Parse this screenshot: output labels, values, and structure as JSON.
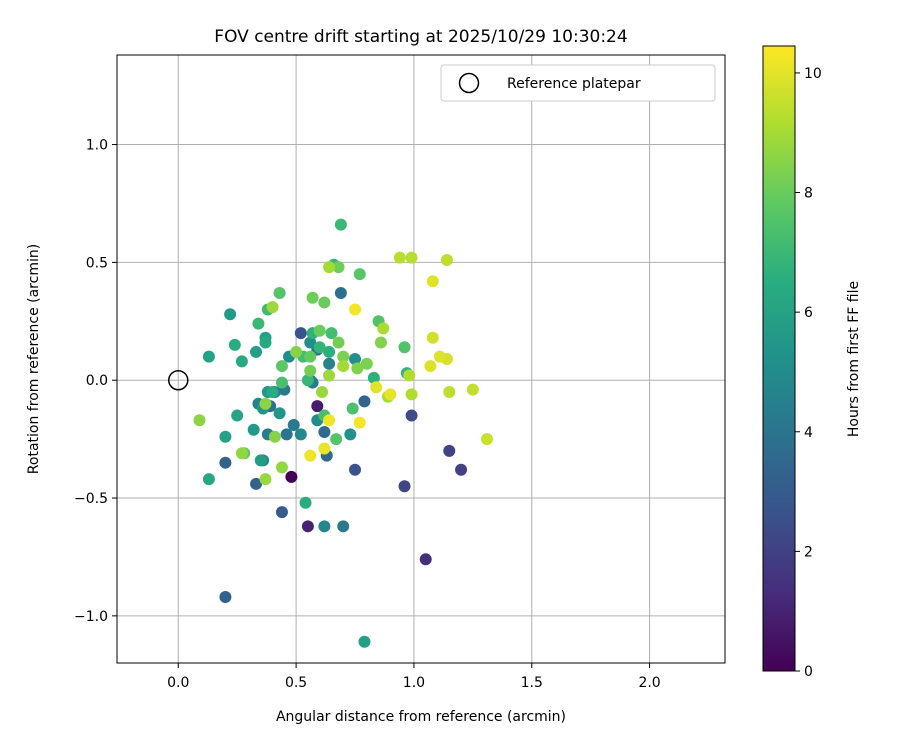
{
  "chart_data": {
    "type": "scatter",
    "title": "FOV centre drift starting at 2025/10/29 10:30:24",
    "xlabel": "Angular distance from reference (arcmin)",
    "ylabel": "Rotation from reference (arcmin)",
    "xlim": [
      -0.26,
      2.32
    ],
    "ylim": [
      -1.2,
      1.38
    ],
    "x_ticks": [
      0.0,
      0.5,
      1.0,
      1.5,
      2.0
    ],
    "x_tick_labels": [
      "0.0",
      "0.5",
      "1.0",
      "1.5",
      "2.0"
    ],
    "y_ticks": [
      -1.0,
      -0.5,
      0.0,
      0.5,
      1.0
    ],
    "y_tick_labels": [
      "−1.0",
      "−0.5",
      "0.0",
      "0.5",
      "1.0"
    ],
    "grid": true,
    "legend": {
      "position": "top-right",
      "entries": [
        "Reference platepar"
      ]
    },
    "reference_point": {
      "x": 0.0,
      "y": 0.0,
      "label": "Reference platepar"
    },
    "colorbar": {
      "label": "Hours from first FF file",
      "colormap": "viridis",
      "range": [
        0,
        10.45
      ],
      "ticks": [
        0,
        2,
        4,
        6,
        8,
        10
      ],
      "tick_labels": [
        "0",
        "2",
        "4",
        "6",
        "8",
        "10"
      ]
    },
    "points": [
      {
        "x": 0.48,
        "y": -0.41,
        "c": 0.0
      },
      {
        "x": 0.55,
        "y": -0.62,
        "c": 1.0
      },
      {
        "x": 0.59,
        "y": -0.11,
        "c": 0.8
      },
      {
        "x": 1.05,
        "y": -0.76,
        "c": 1.4
      },
      {
        "x": 0.96,
        "y": -0.45,
        "c": 2.2
      },
      {
        "x": 1.2,
        "y": -0.38,
        "c": 2.0
      },
      {
        "x": 1.15,
        "y": -0.3,
        "c": 2.1
      },
      {
        "x": 0.99,
        "y": -0.15,
        "c": 2.4
      },
      {
        "x": 0.75,
        "y": -0.38,
        "c": 2.6
      },
      {
        "x": 0.52,
        "y": 0.2,
        "c": 2.7
      },
      {
        "x": 0.44,
        "y": -0.56,
        "c": 3.0
      },
      {
        "x": 0.2,
        "y": -0.92,
        "c": 3.2
      },
      {
        "x": 0.2,
        "y": -0.35,
        "c": 3.3
      },
      {
        "x": 0.33,
        "y": -0.44,
        "c": 3.3
      },
      {
        "x": 0.79,
        "y": -0.09,
        "c": 3.4
      },
      {
        "x": 0.63,
        "y": -0.32,
        "c": 3.5
      },
      {
        "x": 0.62,
        "y": -0.22,
        "c": 3.6
      },
      {
        "x": 0.69,
        "y": 0.37,
        "c": 3.8
      },
      {
        "x": 0.39,
        "y": -0.11,
        "c": 3.9
      },
      {
        "x": 0.59,
        "y": 0.13,
        "c": 4.1
      },
      {
        "x": 0.49,
        "y": -0.19,
        "c": 4.2
      },
      {
        "x": 0.46,
        "y": -0.23,
        "c": 4.0
      },
      {
        "x": 0.38,
        "y": -0.23,
        "c": 4.3
      },
      {
        "x": 0.57,
        "y": -0.01,
        "c": 4.4
      },
      {
        "x": 0.41,
        "y": -0.05,
        "c": 4.5
      },
      {
        "x": 0.34,
        "y": -0.1,
        "c": 4.6
      },
      {
        "x": 0.36,
        "y": -0.34,
        "c": 4.7
      },
      {
        "x": 0.45,
        "y": -0.04,
        "c": 4.3
      },
      {
        "x": 0.56,
        "y": 0.0,
        "c": 4.4
      },
      {
        "x": 0.64,
        "y": 0.07,
        "c": 4.6
      },
      {
        "x": 0.7,
        "y": -0.62,
        "c": 4.2
      },
      {
        "x": 0.62,
        "y": -0.62,
        "c": 4.8
      },
      {
        "x": 0.52,
        "y": -0.23,
        "c": 4.9
      },
      {
        "x": 0.59,
        "y": -0.17,
        "c": 5.0
      },
      {
        "x": 0.47,
        "y": 0.1,
        "c": 5.0
      },
      {
        "x": 0.56,
        "y": 0.16,
        "c": 5.1
      },
      {
        "x": 0.75,
        "y": 0.09,
        "c": 5.2
      },
      {
        "x": 0.73,
        "y": -0.23,
        "c": 5.3
      },
      {
        "x": 0.36,
        "y": -0.12,
        "c": 5.4
      },
      {
        "x": 0.38,
        "y": -0.05,
        "c": 5.5
      },
      {
        "x": 0.43,
        "y": -0.14,
        "c": 5.5
      },
      {
        "x": 0.32,
        "y": -0.21,
        "c": 5.6
      },
      {
        "x": 0.22,
        "y": 0.28,
        "c": 5.6
      },
      {
        "x": 0.35,
        "y": -0.34,
        "c": 5.7
      },
      {
        "x": 0.33,
        "y": 0.12,
        "c": 5.8
      },
      {
        "x": 0.37,
        "y": 0.18,
        "c": 5.9
      },
      {
        "x": 0.13,
        "y": 0.1,
        "c": 6.0
      },
      {
        "x": 0.2,
        "y": -0.24,
        "c": 6.0
      },
      {
        "x": 0.25,
        "y": -0.15,
        "c": 6.1
      },
      {
        "x": 0.13,
        "y": -0.42,
        "c": 6.2
      },
      {
        "x": 0.37,
        "y": 0.16,
        "c": 6.3
      },
      {
        "x": 0.27,
        "y": 0.08,
        "c": 6.3
      },
      {
        "x": 0.4,
        "y": -0.05,
        "c": 6.4
      },
      {
        "x": 0.24,
        "y": 0.15,
        "c": 6.5
      },
      {
        "x": 0.54,
        "y": -0.52,
        "c": 6.5
      },
      {
        "x": 0.64,
        "y": 0.12,
        "c": 6.6
      },
      {
        "x": 0.83,
        "y": 0.01,
        "c": 6.6
      },
      {
        "x": 0.57,
        "y": 0.2,
        "c": 6.7
      },
      {
        "x": 0.6,
        "y": 0.14,
        "c": 6.8
      },
      {
        "x": 0.97,
        "y": 0.03,
        "c": 6.8
      },
      {
        "x": 0.55,
        "y": 0.0,
        "c": 6.9
      },
      {
        "x": 0.66,
        "y": 0.49,
        "c": 6.9
      },
      {
        "x": 0.69,
        "y": 0.66,
        "c": 7.0
      },
      {
        "x": 0.34,
        "y": 0.24,
        "c": 7.0
      },
      {
        "x": 0.38,
        "y": 0.3,
        "c": 7.1
      },
      {
        "x": 0.53,
        "y": 0.1,
        "c": 7.2
      },
      {
        "x": 0.65,
        "y": 0.2,
        "c": 7.2
      },
      {
        "x": 0.44,
        "y": -0.01,
        "c": 7.3
      },
      {
        "x": 0.62,
        "y": -0.15,
        "c": 7.3
      },
      {
        "x": 0.74,
        "y": -0.12,
        "c": 7.4
      },
      {
        "x": 0.85,
        "y": 0.25,
        "c": 7.5
      },
      {
        "x": 0.96,
        "y": 0.14,
        "c": 7.5
      },
      {
        "x": 0.67,
        "y": -0.25,
        "c": 7.6
      },
      {
        "x": 0.43,
        "y": 0.37,
        "c": 7.6
      },
      {
        "x": 0.77,
        "y": 0.45,
        "c": 7.7
      },
      {
        "x": 0.44,
        "y": 0.06,
        "c": 7.8
      },
      {
        "x": 0.28,
        "y": -0.31,
        "c": 7.8
      },
      {
        "x": 0.56,
        "y": 0.1,
        "c": 7.9
      },
      {
        "x": 0.6,
        "y": 0.21,
        "c": 8.0
      },
      {
        "x": 0.62,
        "y": 0.33,
        "c": 8.0
      },
      {
        "x": 0.57,
        "y": 0.35,
        "c": 8.1
      },
      {
        "x": 0.68,
        "y": 0.48,
        "c": 8.1
      },
      {
        "x": 0.68,
        "y": 0.16,
        "c": 8.2
      },
      {
        "x": 0.56,
        "y": 0.04,
        "c": 8.2
      },
      {
        "x": 0.7,
        "y": 0.1,
        "c": 8.3
      },
      {
        "x": 0.8,
        "y": 0.07,
        "c": 8.3
      },
      {
        "x": 0.76,
        "y": 0.05,
        "c": 8.4
      },
      {
        "x": 0.86,
        "y": 0.16,
        "c": 8.4
      },
      {
        "x": 0.5,
        "y": 0.12,
        "c": 8.5
      },
      {
        "x": 0.41,
        "y": -0.24,
        "c": 8.5
      },
      {
        "x": 0.37,
        "y": -0.1,
        "c": 8.6
      },
      {
        "x": 0.09,
        "y": -0.17,
        "c": 8.6
      },
      {
        "x": 0.27,
        "y": -0.31,
        "c": 8.7
      },
      {
        "x": 0.44,
        "y": -0.37,
        "c": 8.7
      },
      {
        "x": 0.37,
        "y": -0.42,
        "c": 8.8
      },
      {
        "x": 0.61,
        "y": -0.05,
        "c": 8.8
      },
      {
        "x": 0.64,
        "y": 0.02,
        "c": 8.9
      },
      {
        "x": 0.4,
        "y": 0.31,
        "c": 8.9
      },
      {
        "x": 0.64,
        "y": 0.48,
        "c": 9.0
      },
      {
        "x": 0.7,
        "y": 0.06,
        "c": 9.0
      },
      {
        "x": 0.87,
        "y": 0.22,
        "c": 9.1
      },
      {
        "x": 0.89,
        "y": -0.07,
        "c": 9.1
      },
      {
        "x": 0.98,
        "y": 0.02,
        "c": 9.2
      },
      {
        "x": 0.99,
        "y": -0.06,
        "c": 9.2
      },
      {
        "x": 0.94,
        "y": 0.52,
        "c": 9.3
      },
      {
        "x": 0.99,
        "y": 0.52,
        "c": 9.3
      },
      {
        "x": 1.14,
        "y": 0.51,
        "c": 9.4
      },
      {
        "x": 1.15,
        "y": -0.05,
        "c": 9.4
      },
      {
        "x": 1.25,
        "y": -0.04,
        "c": 9.5
      },
      {
        "x": 1.31,
        "y": -0.25,
        "c": 9.6
      },
      {
        "x": 1.08,
        "y": 0.18,
        "c": 9.7
      },
      {
        "x": 1.14,
        "y": 0.09,
        "c": 9.8
      },
      {
        "x": 1.11,
        "y": 0.1,
        "c": 9.9
      },
      {
        "x": 1.07,
        "y": 0.06,
        "c": 9.9
      },
      {
        "x": 1.08,
        "y": 0.42,
        "c": 10.0
      },
      {
        "x": 0.84,
        "y": -0.03,
        "c": 10.0
      },
      {
        "x": 0.9,
        "y": -0.06,
        "c": 10.1
      },
      {
        "x": 0.62,
        "y": -0.29,
        "c": 10.1
      },
      {
        "x": 0.56,
        "y": -0.32,
        "c": 10.2
      },
      {
        "x": 0.64,
        "y": -0.17,
        "c": 10.2
      },
      {
        "x": 0.77,
        "y": -0.18,
        "c": 10.3
      },
      {
        "x": 0.75,
        "y": 0.3,
        "c": 10.3
      },
      {
        "x": 0.79,
        "y": -1.11,
        "c": 5.9
      }
    ]
  }
}
